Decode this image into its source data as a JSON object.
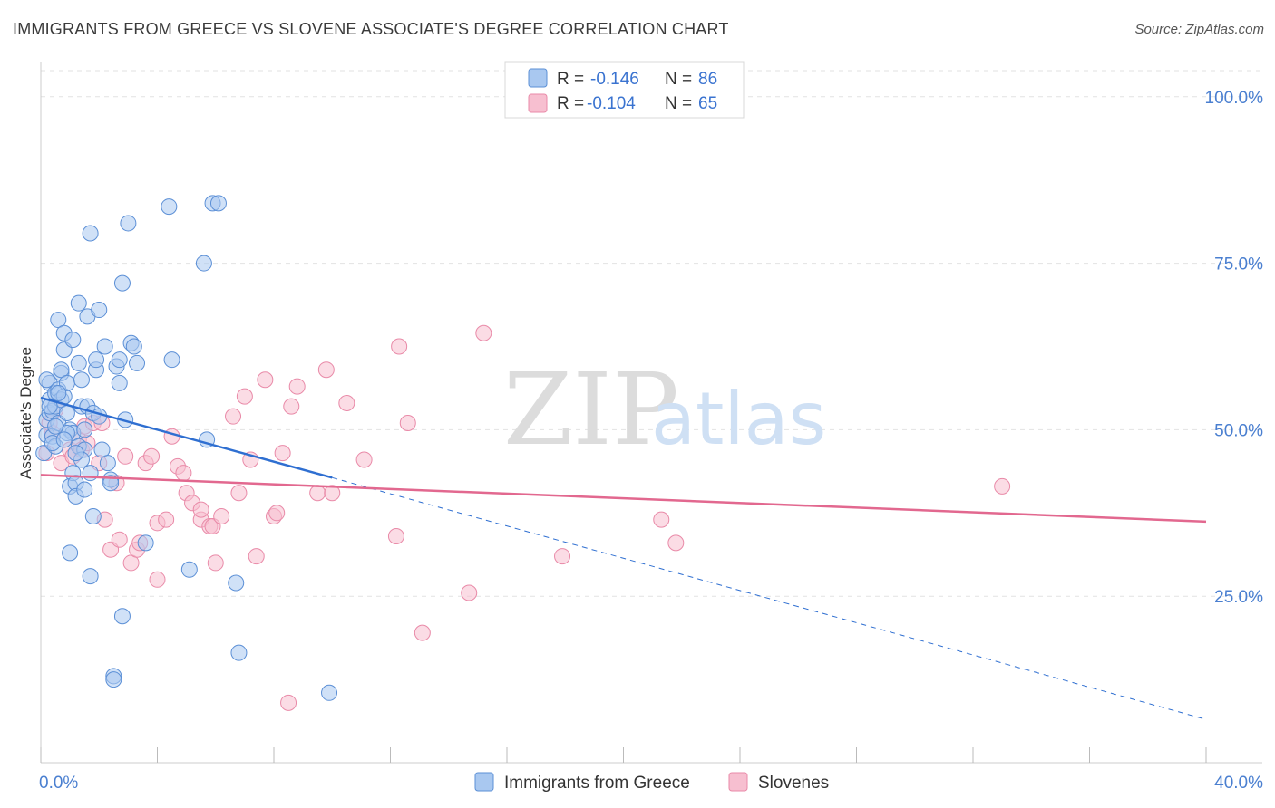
{
  "title": "IMMIGRANTS FROM GREECE VS SLOVENE ASSOCIATE'S DEGREE CORRELATION CHART",
  "source": "Source: ZipAtlas.com",
  "watermark": {
    "zip": "ZIP",
    "atlas": "atlas"
  },
  "colors": {
    "blue_fill": "#a9c8f0",
    "blue_stroke": "#5b8fd6",
    "blue_line": "#2f6fd1",
    "pink_fill": "#f7bfd0",
    "pink_stroke": "#e98aa8",
    "pink_line": "#e2688f",
    "grid": "#e2e2e2",
    "axis_text": "#4a7fd0"
  },
  "legend": {
    "rows": [
      {
        "r_label": "R =",
        "r_value": "-0.146",
        "n_label": "N =",
        "n_value": "86"
      },
      {
        "r_label": "R =",
        "r_value": "-0.104",
        "n_label": "N =",
        "n_value": "65"
      }
    ]
  },
  "chart_data": {
    "type": "scatter",
    "title": "IMMIGRANTS FROM GREECE VS SLOVENE ASSOCIATE'S DEGREE CORRELATION CHART",
    "xlabel": "",
    "ylabel": "Associate's Degree",
    "xlim": [
      0,
      40
    ],
    "ylim": [
      0,
      105
    ],
    "x_tick_labels": [
      "0.0%",
      "40.0%"
    ],
    "y_ticks": [
      25,
      50,
      75,
      100
    ],
    "y_tick_labels": [
      "25.0%",
      "50.0%",
      "75.0%",
      "100.0%"
    ],
    "grid": true,
    "series": [
      {
        "name": "Immigrants from Greece",
        "r": -0.146,
        "n": 86,
        "trend": {
          "x0": 0,
          "y0": 54.8,
          "x1": 10,
          "y1": 42.8,
          "dash_x1": 40,
          "dash_y1": 6.5
        },
        "points": [
          [
            0.1,
            46.5
          ],
          [
            0.2,
            49.2
          ],
          [
            0.2,
            51.5
          ],
          [
            0.3,
            54.5
          ],
          [
            0.3,
            52.5
          ],
          [
            0.3,
            57.0
          ],
          [
            0.4,
            49.0
          ],
          [
            0.4,
            52.8
          ],
          [
            0.5,
            55.5
          ],
          [
            0.5,
            53.5
          ],
          [
            0.5,
            47.5
          ],
          [
            0.6,
            56.0
          ],
          [
            0.6,
            51.0
          ],
          [
            0.6,
            66.5
          ],
          [
            0.7,
            54.5
          ],
          [
            0.7,
            58.5
          ],
          [
            0.7,
            59.0
          ],
          [
            0.8,
            62.0
          ],
          [
            0.8,
            55.0
          ],
          [
            0.8,
            64.5
          ],
          [
            0.9,
            52.5
          ],
          [
            0.9,
            57.0
          ],
          [
            1.0,
            41.5
          ],
          [
            1.0,
            50.0
          ],
          [
            1.1,
            49.5
          ],
          [
            1.1,
            43.5
          ],
          [
            1.1,
            63.5
          ],
          [
            1.2,
            42.0
          ],
          [
            1.2,
            40.0
          ],
          [
            1.3,
            47.5
          ],
          [
            1.3,
            60.0
          ],
          [
            1.3,
            69.0
          ],
          [
            1.4,
            57.5
          ],
          [
            1.4,
            53.5
          ],
          [
            1.5,
            47.0
          ],
          [
            1.5,
            41.0
          ],
          [
            1.6,
            67.0
          ],
          [
            1.6,
            53.5
          ],
          [
            1.7,
            43.5
          ],
          [
            1.7,
            28.0
          ],
          [
            1.7,
            79.5
          ],
          [
            1.8,
            37.0
          ],
          [
            1.8,
            52.5
          ],
          [
            1.9,
            59.0
          ],
          [
            1.9,
            60.5
          ],
          [
            2.0,
            68.0
          ],
          [
            2.1,
            47.0
          ],
          [
            2.2,
            62.5
          ],
          [
            2.3,
            45.0
          ],
          [
            2.4,
            42.5
          ],
          [
            2.4,
            42.0
          ],
          [
            2.5,
            13.0
          ],
          [
            2.5,
            12.5
          ],
          [
            2.6,
            59.5
          ],
          [
            2.7,
            60.5
          ],
          [
            2.7,
            57.0
          ],
          [
            2.8,
            72.0
          ],
          [
            2.8,
            22.0
          ],
          [
            2.9,
            51.5
          ],
          [
            3.0,
            81.0
          ],
          [
            3.1,
            63.0
          ],
          [
            3.2,
            62.5
          ],
          [
            3.3,
            60.0
          ],
          [
            3.6,
            33.0
          ],
          [
            4.4,
            83.5
          ],
          [
            4.5,
            60.5
          ],
          [
            5.1,
            29.0
          ],
          [
            5.6,
            75.0
          ],
          [
            5.7,
            48.5
          ],
          [
            5.9,
            84.0
          ],
          [
            6.1,
            84.0
          ],
          [
            6.7,
            27.0
          ],
          [
            6.8,
            16.5
          ],
          [
            9.9,
            10.5
          ],
          [
            0.4,
            48.0
          ],
          [
            0.9,
            49.5
          ],
          [
            1.0,
            31.5
          ],
          [
            1.4,
            45.5
          ],
          [
            0.2,
            57.5
          ],
          [
            0.6,
            55.5
          ],
          [
            1.2,
            46.5
          ],
          [
            2.0,
            52.0
          ],
          [
            0.3,
            53.5
          ],
          [
            0.8,
            48.5
          ],
          [
            1.5,
            50.0
          ],
          [
            0.5,
            50.5
          ]
        ]
      },
      {
        "name": "Slovenes",
        "r": -0.104,
        "n": 65,
        "trend": {
          "x0": 0,
          "y0": 43.2,
          "x1": 40,
          "y1": 36.2
        },
        "points": [
          [
            0.2,
            46.5
          ],
          [
            0.4,
            49.5
          ],
          [
            0.5,
            53.0
          ],
          [
            0.7,
            45.0
          ],
          [
            1.0,
            47.0
          ],
          [
            1.1,
            46.0
          ],
          [
            1.3,
            48.5
          ],
          [
            1.4,
            47.0
          ],
          [
            1.5,
            50.5
          ],
          [
            1.6,
            48.0
          ],
          [
            1.8,
            51.0
          ],
          [
            2.0,
            45.0
          ],
          [
            2.1,
            51.0
          ],
          [
            2.2,
            36.5
          ],
          [
            2.4,
            32.0
          ],
          [
            2.6,
            42.0
          ],
          [
            2.7,
            33.5
          ],
          [
            2.9,
            46.0
          ],
          [
            3.1,
            30.0
          ],
          [
            3.3,
            32.0
          ],
          [
            3.4,
            33.0
          ],
          [
            3.6,
            45.0
          ],
          [
            3.8,
            46.0
          ],
          [
            4.0,
            36.0
          ],
          [
            4.0,
            27.5
          ],
          [
            4.3,
            36.5
          ],
          [
            4.5,
            49.0
          ],
          [
            4.7,
            44.5
          ],
          [
            4.9,
            43.5
          ],
          [
            5.0,
            40.5
          ],
          [
            5.2,
            39.0
          ],
          [
            5.5,
            36.5
          ],
          [
            5.5,
            38.0
          ],
          [
            5.8,
            35.5
          ],
          [
            5.9,
            35.5
          ],
          [
            6.0,
            30.0
          ],
          [
            6.2,
            37.0
          ],
          [
            6.6,
            52.0
          ],
          [
            6.8,
            40.5
          ],
          [
            7.0,
            55.0
          ],
          [
            7.2,
            45.5
          ],
          [
            7.4,
            31.0
          ],
          [
            7.7,
            57.5
          ],
          [
            8.0,
            37.0
          ],
          [
            8.1,
            37.5
          ],
          [
            8.3,
            46.5
          ],
          [
            8.5,
            9.0
          ],
          [
            8.6,
            53.5
          ],
          [
            8.8,
            56.5
          ],
          [
            9.5,
            40.5
          ],
          [
            9.8,
            59.0
          ],
          [
            10.0,
            40.5
          ],
          [
            10.5,
            54.0
          ],
          [
            11.1,
            45.5
          ],
          [
            12.2,
            34.0
          ],
          [
            12.3,
            62.5
          ],
          [
            12.6,
            51.0
          ],
          [
            13.1,
            19.5
          ],
          [
            14.7,
            25.5
          ],
          [
            15.2,
            64.5
          ],
          [
            17.9,
            31.0
          ],
          [
            21.3,
            36.5
          ],
          [
            21.8,
            33.0
          ],
          [
            33.0,
            41.5
          ],
          [
            0.3,
            51.0
          ]
        ]
      }
    ]
  },
  "bottom_legend": [
    "Immigrants from Greece",
    "Slovenes"
  ]
}
